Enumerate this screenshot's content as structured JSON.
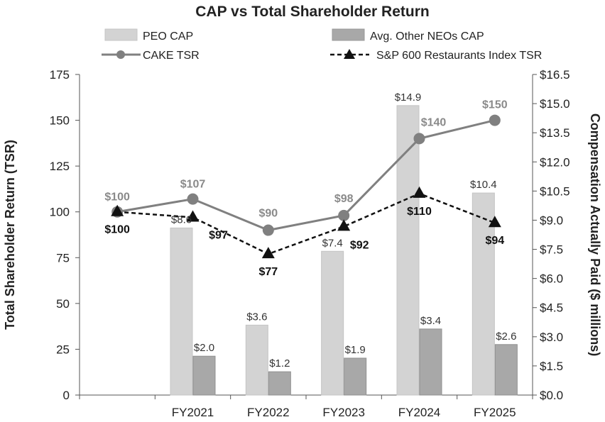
{
  "chart_data": {
    "type": "bar",
    "title": "CAP vs Total Shareholder Return",
    "categories": [
      "",
      "FY2021",
      "FY2022",
      "FY2023",
      "FY2024",
      "FY2025"
    ],
    "left_axis": {
      "label": "Total Shareholder Return (TSR)",
      "ylim": [
        0,
        175
      ],
      "ticks": [
        0,
        25,
        50,
        75,
        100,
        125,
        150,
        175
      ],
      "tick_labels": [
        "0",
        "25",
        "50",
        "75",
        "100",
        "125",
        "150",
        "175"
      ]
    },
    "right_axis": {
      "label": "Compensation Actually Paid ($ millions)",
      "ylim": [
        0,
        16.5
      ],
      "ticks": [
        0,
        1.5,
        3,
        4.5,
        6,
        7.5,
        9,
        10.5,
        12,
        13.5,
        15,
        16.5
      ],
      "tick_labels": [
        "$0.0",
        "$1.5",
        "$3.0",
        "$4.5",
        "$6.0",
        "$7.5",
        "$9.0",
        "$10.5",
        "$12.0",
        "$13.5",
        "$15.0",
        "$16.5"
      ]
    },
    "series": [
      {
        "name": "PEO CAP",
        "kind": "bar",
        "axis": "right",
        "color": "#d3d3d3",
        "values": [
          null,
          8.6,
          3.6,
          7.4,
          14.9,
          10.4
        ],
        "labels": [
          "",
          "$8.6",
          "$3.6",
          "$7.4",
          "$14.9",
          "$10.4"
        ]
      },
      {
        "name": "Avg. Other NEOs CAP",
        "kind": "bar",
        "axis": "right",
        "color": "#a8a8a8",
        "values": [
          null,
          2.0,
          1.2,
          1.9,
          3.4,
          2.6
        ],
        "labels": [
          "",
          "$2.0",
          "$1.2",
          "$1.9",
          "$3.4",
          "$2.6"
        ]
      },
      {
        "name": "CAKE TSR",
        "kind": "line",
        "axis": "left",
        "color": "#808080",
        "marker": "circle",
        "values": [
          100,
          107,
          90,
          98,
          140,
          150
        ],
        "labels": [
          "$100",
          "$107",
          "$90",
          "$98",
          "$140",
          "$150"
        ]
      },
      {
        "name": "S&P 600 Restaurants Index TSR",
        "kind": "line",
        "axis": "left",
        "color": "#111111",
        "marker": "triangle",
        "dashed": true,
        "values": [
          100,
          97,
          77,
          92,
          110,
          94
        ],
        "labels": [
          "$100",
          "$97",
          "$77",
          "$92",
          "$110",
          "$94"
        ]
      }
    ],
    "legend_position": "top",
    "grid": false
  }
}
